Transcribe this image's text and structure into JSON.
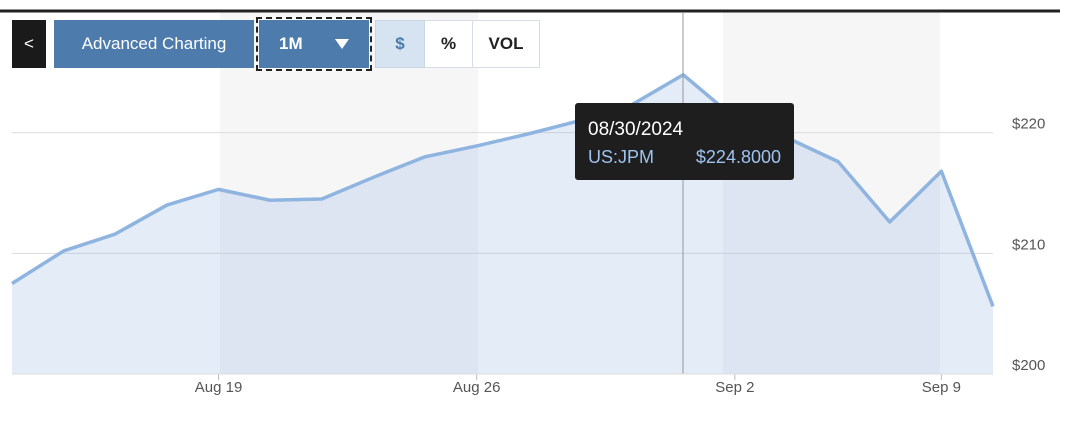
{
  "toolbar": {
    "back": "<",
    "advanced": "Advanced Charting",
    "range": "1M",
    "modes": [
      "$",
      "%",
      "VOL"
    ]
  },
  "chart_data": {
    "type": "line",
    "categories": [
      null,
      null,
      null,
      null,
      "Aug 19",
      null,
      null,
      null,
      null,
      "Aug 26",
      null,
      null,
      null,
      null,
      "Sep 2",
      null,
      null,
      null,
      "Sep 9",
      null
    ],
    "series": [
      {
        "name": "US:JPM",
        "color": "#8fb4e0",
        "values": [
          207.5,
          210.2,
          211.6,
          214.0,
          215.3,
          214.4,
          214.5,
          216.3,
          218.0,
          218.9,
          219.9,
          221.0,
          222.3,
          224.8,
          221.2,
          219.6,
          217.6,
          212.6,
          216.8,
          205.6
        ]
      }
    ],
    "ylim": [
      200,
      230
    ],
    "yticks": [
      {
        "value": 200,
        "label": "$200"
      },
      {
        "value": 210,
        "label": "$210"
      },
      {
        "value": 220,
        "label": "$220"
      }
    ],
    "grid": true,
    "tooltip": {
      "date": "08/30/2024",
      "symbol": "US:JPM",
      "price": "$224.8000",
      "index": 13
    }
  }
}
